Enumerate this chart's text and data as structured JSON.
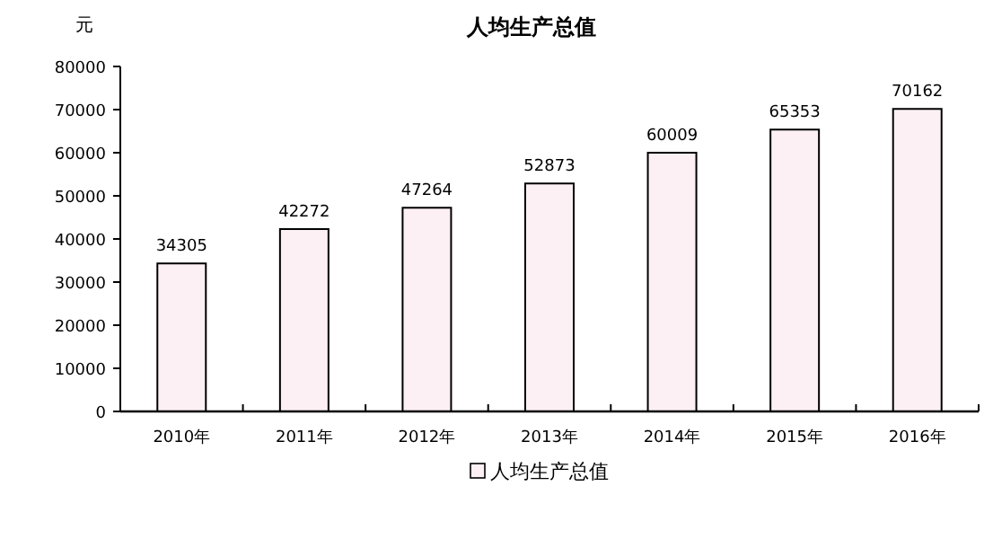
{
  "chart_data": {
    "type": "bar",
    "title": "人均生产总值",
    "ylabel": "元",
    "categories": [
      "2010年",
      "2011年",
      "2012年",
      "2013年",
      "2014年",
      "2015年",
      "2016年"
    ],
    "series": [
      {
        "name": "人均生产总值",
        "color": "#fdf0f4",
        "values": [
          34305,
          42272,
          47264,
          52873,
          60009,
          65353,
          70162
        ]
      }
    ],
    "ylim": [
      0,
      80000
    ],
    "yticks": [
      0,
      10000,
      20000,
      30000,
      40000,
      50000,
      60000,
      70000,
      80000
    ],
    "data_labels": true,
    "legend": "bottom",
    "grid": false
  }
}
